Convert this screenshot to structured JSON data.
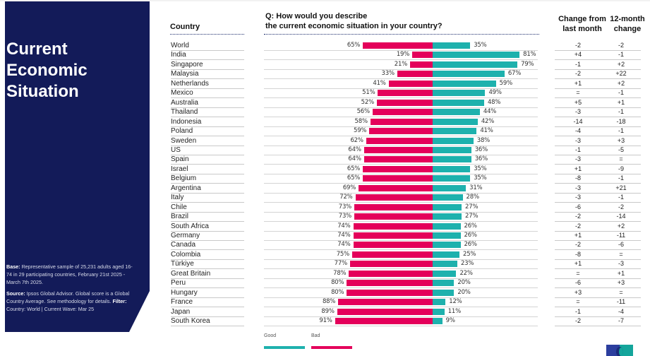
{
  "panel": {
    "title": "Current Economic Situation",
    "base_label": "Base:",
    "base_text": "Representative sample of 25,231 adults aged 16-74 in 29 participating countries, February 21st 2025 - March 7th 2025.",
    "source_label": "Source:",
    "source_text": "Ipsos Global Advisor. Global score is a Global Country Average. See methodology for details.",
    "filter_label": "Filter:",
    "filter_text": "Country: World | Current Wave: Mar 25"
  },
  "headers": {
    "country": "Country",
    "question_line1": "Q: How would you describe",
    "question_line2": "the current economic situation in your country?",
    "change_month_line1": "Change from",
    "change_month_line2": "last month",
    "change_year_line1": "12-month",
    "change_year_line2": "change"
  },
  "colors": {
    "good": "#1eb1ad",
    "bad": "#e4005a",
    "panel": "#131b59"
  },
  "legend": {
    "good": "Good",
    "bad": "Bad"
  },
  "chart_data": {
    "type": "bar",
    "orientation": "horizontal-diverging",
    "title": "Q: How would you describe the current economic situation in your country?",
    "unit": "%",
    "series": [
      {
        "name": "Bad",
        "color": "#e4005a"
      },
      {
        "name": "Good",
        "color": "#1eb1ad"
      }
    ],
    "rows": [
      {
        "country": "World",
        "bad": 65,
        "good": 35,
        "change_month": "-2",
        "change_12m": "-2"
      },
      {
        "country": "India",
        "bad": 19,
        "good": 81,
        "change_month": "+4",
        "change_12m": "-1"
      },
      {
        "country": "Singapore",
        "bad": 21,
        "good": 79,
        "change_month": "-1",
        "change_12m": "+2"
      },
      {
        "country": "Malaysia",
        "bad": 33,
        "good": 67,
        "change_month": "-2",
        "change_12m": "+22"
      },
      {
        "country": "Netherlands",
        "bad": 41,
        "good": 59,
        "change_month": "+1",
        "change_12m": "+2"
      },
      {
        "country": "Mexico",
        "bad": 51,
        "good": 49,
        "change_month": "=",
        "change_12m": "-1"
      },
      {
        "country": "Australia",
        "bad": 52,
        "good": 48,
        "change_month": "+5",
        "change_12m": "+1"
      },
      {
        "country": "Thailand",
        "bad": 56,
        "good": 44,
        "change_month": "-3",
        "change_12m": "-1"
      },
      {
        "country": "Indonesia",
        "bad": 58,
        "good": 42,
        "change_month": "-14",
        "change_12m": "-18"
      },
      {
        "country": "Poland",
        "bad": 59,
        "good": 41,
        "change_month": "-4",
        "change_12m": "-1"
      },
      {
        "country": "Sweden",
        "bad": 62,
        "good": 38,
        "change_month": "-3",
        "change_12m": "+3"
      },
      {
        "country": "US",
        "bad": 64,
        "good": 36,
        "change_month": "-1",
        "change_12m": "-5"
      },
      {
        "country": "Spain",
        "bad": 64,
        "good": 36,
        "change_month": "-3",
        "change_12m": "="
      },
      {
        "country": "Israel",
        "bad": 65,
        "good": 35,
        "change_month": "+1",
        "change_12m": "-9"
      },
      {
        "country": "Belgium",
        "bad": 65,
        "good": 35,
        "change_month": "-8",
        "change_12m": "-1"
      },
      {
        "country": "Argentina",
        "bad": 69,
        "good": 31,
        "change_month": "-3",
        "change_12m": "+21"
      },
      {
        "country": "Italy",
        "bad": 72,
        "good": 28,
        "change_month": "-3",
        "change_12m": "-1"
      },
      {
        "country": "Chile",
        "bad": 73,
        "good": 27,
        "change_month": "-6",
        "change_12m": "-2"
      },
      {
        "country": "Brazil",
        "bad": 73,
        "good": 27,
        "change_month": "-2",
        "change_12m": "-14"
      },
      {
        "country": "South Africa",
        "bad": 74,
        "good": 26,
        "change_month": "-2",
        "change_12m": "+2"
      },
      {
        "country": "Germany",
        "bad": 74,
        "good": 26,
        "change_month": "+1",
        "change_12m": "-11"
      },
      {
        "country": "Canada",
        "bad": 74,
        "good": 26,
        "change_month": "-2",
        "change_12m": "-6"
      },
      {
        "country": "Colombia",
        "bad": 75,
        "good": 25,
        "change_month": "-8",
        "change_12m": "="
      },
      {
        "country": "Türkiye",
        "bad": 77,
        "good": 23,
        "change_month": "+1",
        "change_12m": "-3"
      },
      {
        "country": "Great Britain",
        "bad": 78,
        "good": 22,
        "change_month": "=",
        "change_12m": "+1"
      },
      {
        "country": "Peru",
        "bad": 80,
        "good": 20,
        "change_month": "-6",
        "change_12m": "+3"
      },
      {
        "country": "Hungary",
        "bad": 80,
        "good": 20,
        "change_month": "+3",
        "change_12m": "="
      },
      {
        "country": "France",
        "bad": 88,
        "good": 12,
        "change_month": "=",
        "change_12m": "-11"
      },
      {
        "country": "Japan",
        "bad": 89,
        "good": 11,
        "change_month": "-1",
        "change_12m": "-4"
      },
      {
        "country": "South Korea",
        "bad": 91,
        "good": 9,
        "change_month": "-2",
        "change_12m": "-7"
      }
    ]
  }
}
